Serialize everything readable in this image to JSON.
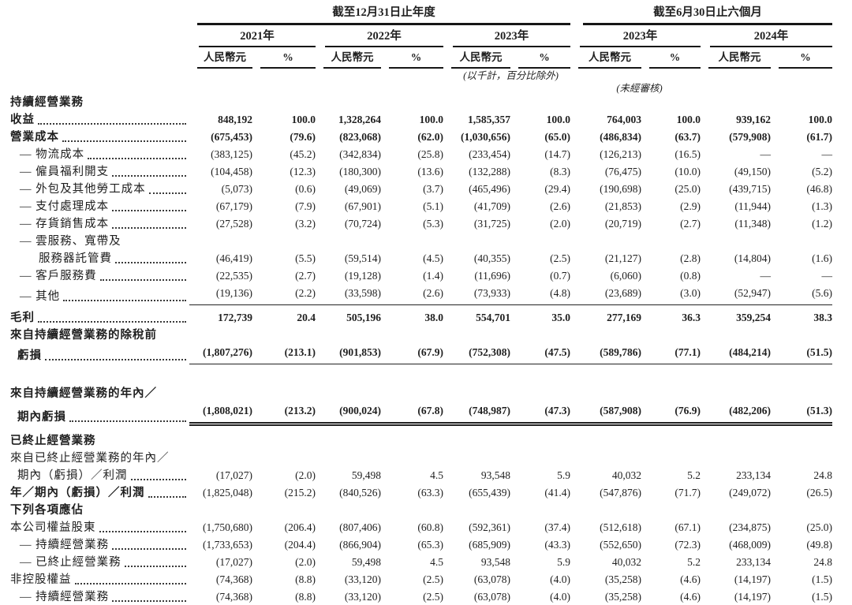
{
  "header": {
    "period_annual": "截至12月31日止年度",
    "period_interim": "截至6月30日止六個月",
    "years": [
      "2021年",
      "2022年",
      "2023年",
      "2023年",
      "2024年"
    ],
    "currency_label": "人民幣元",
    "percent_label": "%",
    "note_thousands": "(以千計，百分比除外)",
    "note_unaudited": "(未經審核)"
  },
  "rows": [
    {
      "type": "section",
      "label": "持續經營業務",
      "bold": true
    },
    {
      "type": "data",
      "label": "收益",
      "dots": true,
      "bold": true,
      "indent": 0,
      "values": [
        "848,192",
        "100.0",
        "1,328,264",
        "100.0",
        "1,585,357",
        "100.0",
        "764,003",
        "100.0",
        "939,162",
        "100.0"
      ]
    },
    {
      "type": "data",
      "label": "營業成本",
      "dots": true,
      "bold": true,
      "indent": 0,
      "values": [
        "(675,453)",
        "(79.6)",
        "(823,068)",
        "(62.0)",
        "(1,030,656)",
        "(65.0)",
        "(486,834)",
        "(63.7)",
        "(579,908)",
        "(61.7)"
      ]
    },
    {
      "type": "data",
      "label": "— 物流成本",
      "dots": true,
      "indent": 12,
      "values": [
        "(383,125)",
        "(45.2)",
        "(342,834)",
        "(25.8)",
        "(233,454)",
        "(14.7)",
        "(126,213)",
        "(16.5)",
        "—",
        "—"
      ]
    },
    {
      "type": "data",
      "label": "— 僱員福利開支",
      "dots": true,
      "indent": 12,
      "values": [
        "(104,458)",
        "(12.3)",
        "(180,300)",
        "(13.6)",
        "(132,288)",
        "(8.3)",
        "(76,475)",
        "(10.0)",
        "(49,150)",
        "(5.2)"
      ]
    },
    {
      "type": "data",
      "label": "— 外包及其他勞工成本",
      "dots": true,
      "indent": 12,
      "values": [
        "(5,073)",
        "(0.6)",
        "(49,069)",
        "(3.7)",
        "(465,496)",
        "(29.4)",
        "(190,698)",
        "(25.0)",
        "(439,715)",
        "(46.8)"
      ]
    },
    {
      "type": "data",
      "label": "— 支付處理成本",
      "dots": true,
      "indent": 12,
      "values": [
        "(67,179)",
        "(7.9)",
        "(67,901)",
        "(5.1)",
        "(41,709)",
        "(2.6)",
        "(21,853)",
        "(2.9)",
        "(11,944)",
        "(1.3)"
      ]
    },
    {
      "type": "data",
      "label": "— 存貨銷售成本",
      "dots": true,
      "indent": 12,
      "values": [
        "(27,528)",
        "(3.2)",
        "(70,724)",
        "(5.3)",
        "(31,725)",
        "(2.0)",
        "(20,719)",
        "(2.7)",
        "(11,348)",
        "(1.2)"
      ]
    },
    {
      "type": "label",
      "label": "— 雲服務、寬帶及",
      "indent": 12
    },
    {
      "type": "data",
      "label": "服務器託管費",
      "dots": true,
      "indent": 36,
      "values": [
        "(46,419)",
        "(5.5)",
        "(59,514)",
        "(4.5)",
        "(40,355)",
        "(2.5)",
        "(21,127)",
        "(2.8)",
        "(14,804)",
        "(1.6)"
      ]
    },
    {
      "type": "data",
      "label": "— 客戶服務費",
      "dots": true,
      "indent": 12,
      "values": [
        "(22,535)",
        "(2.7)",
        "(19,128)",
        "(1.4)",
        "(11,696)",
        "(0.7)",
        "(6,060)",
        "(0.8)",
        "—",
        "—"
      ]
    },
    {
      "type": "data",
      "label": "— 其他",
      "dots": true,
      "indent": 12,
      "rule": "single",
      "values": [
        "(19,136)",
        "(2.2)",
        "(33,598)",
        "(2.6)",
        "(73,933)",
        "(4.8)",
        "(23,689)",
        "(3.0)",
        "(52,947)",
        "(5.6)"
      ]
    },
    {
      "type": "spacer",
      "h": 5
    },
    {
      "type": "data",
      "label": "毛利",
      "dots": true,
      "bold": true,
      "indent": 0,
      "values": [
        "172,739",
        "20.4",
        "505,196",
        "38.0",
        "554,701",
        "35.0",
        "277,169",
        "36.3",
        "359,254",
        "38.3"
      ]
    },
    {
      "type": "label",
      "label": "來自持續經營業務的除稅前",
      "bold": true,
      "indent": 0
    },
    {
      "type": "data",
      "label": "虧損",
      "dots": true,
      "bold": true,
      "indent": 9,
      "rule": "single",
      "values": [
        "(1,807,276)",
        "(213.1)",
        "(901,853)",
        "(67.9)",
        "(752,308)",
        "(47.5)",
        "(589,786)",
        "(77.1)",
        "(484,214)",
        "(51.5)"
      ]
    },
    {
      "type": "spacer",
      "h": 26
    },
    {
      "type": "label",
      "label": "來自持續經營業務的年內／",
      "bold": true,
      "indent": 0
    },
    {
      "type": "data",
      "label": "期內虧損",
      "dots": true,
      "bold": true,
      "indent": 9,
      "rule": "double",
      "values": [
        "(1,808,021)",
        "(213.2)",
        "(900,024)",
        "(67.8)",
        "(748,987)",
        "(47.3)",
        "(587,908)",
        "(76.9)",
        "(482,206)",
        "(51.3)"
      ]
    },
    {
      "type": "spacer",
      "h": 8
    },
    {
      "type": "section",
      "label": "已終止經營業務",
      "bold": true
    },
    {
      "type": "label",
      "label": "來自已終止經營業務的年內／",
      "indent": 0
    },
    {
      "type": "data",
      "label": "期內（虧損）／利潤",
      "dots": true,
      "indent": 9,
      "values": [
        "(17,027)",
        "(2.0)",
        "59,498",
        "4.5",
        "93,548",
        "5.9",
        "40,032",
        "5.2",
        "233,134",
        "24.8"
      ]
    },
    {
      "type": "data",
      "label": "年／期內（虧損）／利潤",
      "dots": true,
      "bold_label": true,
      "indent": 0,
      "values": [
        "(1,825,048)",
        "(215.2)",
        "(840,526)",
        "(63.3)",
        "(655,439)",
        "(41.4)",
        "(547,876)",
        "(71.7)",
        "(249,072)",
        "(26.5)"
      ]
    },
    {
      "type": "section",
      "label": "下列各項應佔",
      "bold": true
    },
    {
      "type": "data",
      "label": "本公司權益股東",
      "dots": true,
      "indent": 0,
      "values": [
        "(1,750,680)",
        "(206.4)",
        "(807,406)",
        "(60.8)",
        "(592,361)",
        "(37.4)",
        "(512,618)",
        "(67.1)",
        "(234,875)",
        "(25.0)"
      ]
    },
    {
      "type": "data",
      "label": "— 持續經營業務",
      "dots": true,
      "indent": 12,
      "values": [
        "(1,733,653)",
        "(204.4)",
        "(866,904)",
        "(65.3)",
        "(685,909)",
        "(43.3)",
        "(552,650)",
        "(72.3)",
        "(468,009)",
        "(49.8)"
      ]
    },
    {
      "type": "data",
      "label": "— 已終止經營業務",
      "dots": true,
      "indent": 12,
      "values": [
        "(17,027)",
        "(2.0)",
        "59,498",
        "4.5",
        "93,548",
        "5.9",
        "40,032",
        "5.2",
        "233,134",
        "24.8"
      ]
    },
    {
      "type": "data",
      "label": "非控股權益",
      "dots": true,
      "indent": 0,
      "values": [
        "(74,368)",
        "(8.8)",
        "(33,120)",
        "(2.5)",
        "(63,078)",
        "(4.0)",
        "(35,258)",
        "(4.6)",
        "(14,197)",
        "(1.5)"
      ]
    },
    {
      "type": "data",
      "label": "— 持續經營業務",
      "dots": true,
      "indent": 12,
      "values": [
        "(74,368)",
        "(8.8)",
        "(33,120)",
        "(2.5)",
        "(63,078)",
        "(4.0)",
        "(35,258)",
        "(4.6)",
        "(14,197)",
        "(1.5)"
      ]
    }
  ]
}
